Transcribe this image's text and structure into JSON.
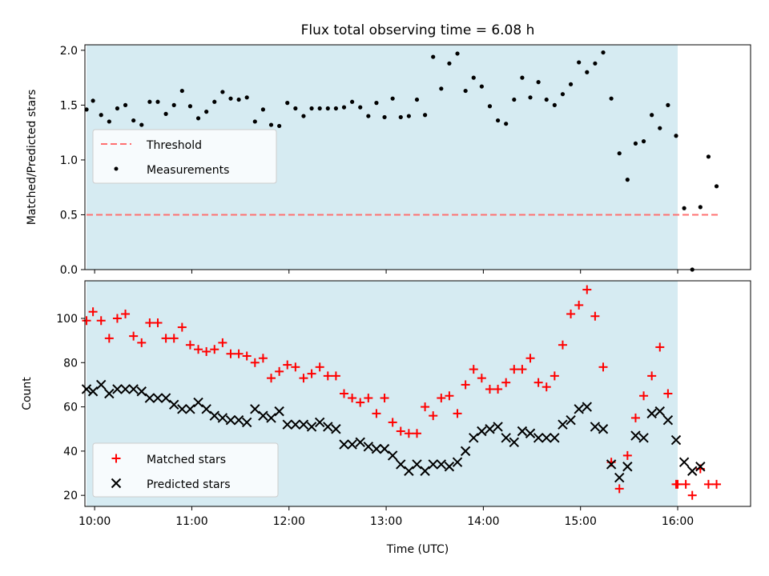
{
  "chart_data": [
    {
      "type": "scatter",
      "title": "Flux total observing time = 6.08 h",
      "ylabel": "Matched/Predicted stars",
      "xlabel": "",
      "xlim": [
        "09:54",
        "16:45"
      ],
      "ylim": [
        0,
        2.05
      ],
      "yticks": [
        "0.0",
        "0.5",
        "1.0",
        "1.5",
        "2.0"
      ],
      "observing_window": [
        "09:55",
        "16:00"
      ],
      "legend": {
        "placement": "center-left",
        "entries": [
          "Threshold",
          "Measurements"
        ]
      },
      "threshold": {
        "name": "Threshold",
        "value": 0.5,
        "x": [
          "09:55",
          "16:25"
        ],
        "color": "#ff7070"
      },
      "series": [
        {
          "name": "Measurements",
          "color": "#000000",
          "x": [
            "09:55",
            "09:59",
            "10:04",
            "10:09",
            "10:14",
            "10:19",
            "10:24",
            "10:29",
            "10:34",
            "10:39",
            "10:44",
            "10:49",
            "10:54",
            "10:59",
            "11:04",
            "11:09",
            "11:14",
            "11:19",
            "11:24",
            "11:29",
            "11:34",
            "11:39",
            "11:44",
            "11:49",
            "11:54",
            "11:59",
            "12:04",
            "12:09",
            "12:14",
            "12:19",
            "12:24",
            "12:29",
            "12:34",
            "12:39",
            "12:44",
            "12:49",
            "12:54",
            "12:59",
            "13:04",
            "13:09",
            "13:14",
            "13:19",
            "13:24",
            "13:29",
            "13:34",
            "13:39",
            "13:44",
            "13:49",
            "13:54",
            "13:59",
            "14:04",
            "14:09",
            "14:14",
            "14:19",
            "14:24",
            "14:29",
            "14:34",
            "14:39",
            "14:44",
            "14:49",
            "14:54",
            "14:59",
            "15:04",
            "15:09",
            "15:14",
            "15:19",
            "15:24",
            "15:29",
            "15:34",
            "15:39",
            "15:44",
            "15:49",
            "15:54",
            "15:59",
            "16:04",
            "16:09",
            "16:14",
            "16:19",
            "16:24"
          ],
          "values": [
            1.46,
            1.54,
            1.41,
            1.35,
            1.47,
            1.5,
            1.36,
            1.32,
            1.53,
            1.53,
            1.42,
            1.5,
            1.63,
            1.49,
            1.38,
            1.44,
            1.53,
            1.62,
            1.56,
            1.55,
            1.57,
            1.35,
            1.46,
            1.32,
            1.31,
            1.52,
            1.47,
            1.4,
            1.47,
            1.47,
            1.47,
            1.47,
            1.48,
            1.53,
            1.48,
            1.4,
            1.52,
            1.39,
            1.56,
            1.39,
            1.4,
            1.55,
            1.41,
            1.94,
            1.65,
            1.88,
            1.97,
            1.63,
            1.75,
            1.67,
            1.49,
            1.36,
            1.33,
            1.55,
            1.75,
            1.57,
            1.71,
            1.55,
            1.5,
            1.6,
            1.69,
            1.89,
            1.8,
            1.88,
            1.98,
            1.56,
            1.06,
            0.82,
            1.15,
            1.17,
            1.41,
            1.29,
            1.5,
            1.22,
            0.56,
            0.0,
            0.57,
            1.03,
            0.76
          ]
        }
      ]
    },
    {
      "type": "scatter",
      "title": "",
      "ylabel": "Count",
      "xlabel": "Time (UTC)",
      "xlim": [
        "09:54",
        "16:45"
      ],
      "ylim": [
        15,
        117
      ],
      "yticks": [
        "20",
        "40",
        "60",
        "80",
        "100"
      ],
      "xticks": [
        "10:00",
        "11:00",
        "12:00",
        "13:00",
        "14:00",
        "15:00",
        "16:00"
      ],
      "observing_window": [
        "09:55",
        "16:00"
      ],
      "legend": {
        "placement": "lower-left",
        "entries": [
          "Matched stars",
          "Predicted stars"
        ]
      },
      "series": [
        {
          "name": "Matched stars",
          "marker": "plus",
          "color": "#ff0000",
          "x": [
            "09:55",
            "09:59",
            "10:04",
            "10:09",
            "10:14",
            "10:19",
            "10:24",
            "10:29",
            "10:34",
            "10:39",
            "10:44",
            "10:49",
            "10:54",
            "10:59",
            "11:04",
            "11:09",
            "11:14",
            "11:19",
            "11:24",
            "11:29",
            "11:34",
            "11:39",
            "11:44",
            "11:49",
            "11:54",
            "11:59",
            "12:04",
            "12:09",
            "12:14",
            "12:19",
            "12:24",
            "12:29",
            "12:34",
            "12:39",
            "12:44",
            "12:49",
            "12:54",
            "12:59",
            "13:04",
            "13:09",
            "13:14",
            "13:19",
            "13:24",
            "13:29",
            "13:34",
            "13:39",
            "13:44",
            "13:49",
            "13:54",
            "13:59",
            "14:04",
            "14:09",
            "14:14",
            "14:19",
            "14:24",
            "14:29",
            "14:34",
            "14:39",
            "14:44",
            "14:49",
            "14:54",
            "14:59",
            "15:04",
            "15:09",
            "15:14",
            "15:19",
            "15:24",
            "15:29",
            "15:34",
            "15:39",
            "15:44",
            "15:49",
            "15:54",
            "15:59",
            "16:00",
            "16:05",
            "16:09",
            "16:14",
            "16:19",
            "16:24"
          ],
          "values": [
            99,
            103,
            99,
            91,
            100,
            102,
            92,
            89,
            98,
            98,
            91,
            91,
            96,
            88,
            86,
            85,
            86,
            89,
            84,
            84,
            83,
            80,
            82,
            73,
            76,
            79,
            78,
            73,
            75,
            78,
            74,
            74,
            66,
            64,
            62,
            64,
            57,
            64,
            53,
            49,
            48,
            48,
            60,
            56,
            64,
            65,
            57,
            70,
            77,
            73,
            68,
            68,
            71,
            77,
            77,
            82,
            71,
            69,
            74,
            88,
            102,
            106,
            113,
            101,
            78,
            35,
            23,
            38,
            55,
            65,
            74,
            87,
            66,
            25,
            25,
            25,
            20,
            32,
            25,
            25
          ]
        },
        {
          "name": "Predicted stars",
          "marker": "x",
          "color": "#000000",
          "x": [
            "09:55",
            "09:59",
            "10:04",
            "10:09",
            "10:14",
            "10:19",
            "10:24",
            "10:29",
            "10:34",
            "10:39",
            "10:44",
            "10:49",
            "10:54",
            "10:59",
            "11:04",
            "11:09",
            "11:14",
            "11:19",
            "11:24",
            "11:29",
            "11:34",
            "11:39",
            "11:44",
            "11:49",
            "11:54",
            "11:59",
            "12:04",
            "12:09",
            "12:14",
            "12:19",
            "12:24",
            "12:29",
            "12:34",
            "12:39",
            "12:44",
            "12:49",
            "12:54",
            "12:59",
            "13:04",
            "13:09",
            "13:14",
            "13:19",
            "13:24",
            "13:29",
            "13:34",
            "13:39",
            "13:44",
            "13:49",
            "13:54",
            "13:59",
            "14:04",
            "14:09",
            "14:14",
            "14:19",
            "14:24",
            "14:29",
            "14:34",
            "14:39",
            "14:44",
            "14:49",
            "14:54",
            "14:59",
            "15:04",
            "15:09",
            "15:14",
            "15:19",
            "15:24",
            "15:29",
            "15:34",
            "15:39",
            "15:44",
            "15:49",
            "15:54",
            "15:59",
            "16:04",
            "16:09",
            "16:14",
            "16:19",
            "16:24"
          ],
          "values": [
            68,
            67,
            70,
            66,
            68,
            68,
            68,
            67,
            64,
            64,
            64,
            61,
            59,
            59,
            62,
            59,
            56,
            55,
            54,
            54,
            53,
            59,
            56,
            55,
            58,
            52,
            52,
            52,
            51,
            53,
            51,
            50,
            43,
            43,
            44,
            42,
            41,
            41,
            38,
            34,
            31,
            34,
            31,
            34,
            34,
            33,
            35,
            40,
            46,
            49,
            50,
            51,
            46,
            44,
            49,
            48,
            46,
            46,
            46,
            52,
            54,
            59,
            60,
            51,
            50,
            34,
            28,
            33,
            47,
            46,
            57,
            58,
            54,
            45,
            35,
            31,
            33,
            null,
            null
          ]
        }
      ]
    }
  ]
}
